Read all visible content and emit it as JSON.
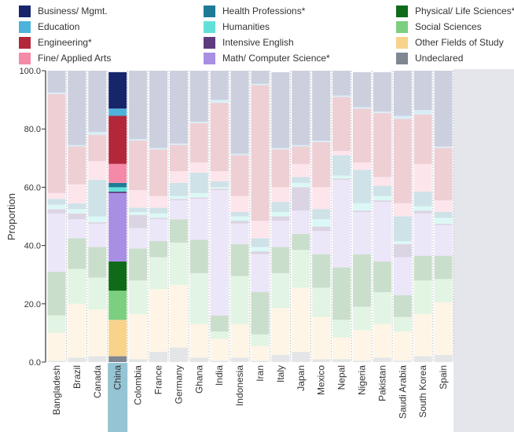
{
  "chart_data": {
    "type": "bar",
    "stacked": true,
    "normalized": true,
    "highlighted_category": "China",
    "categories": [
      "Bangladesh",
      "Brazil",
      "Canada",
      "China",
      "Colombia",
      "France",
      "Germany",
      "Ghana",
      "India",
      "Indonesia",
      "Iran",
      "Italy",
      "Japan",
      "Mexico",
      "Nepal",
      "Nigeria",
      "Pakistan",
      "Saudi Arabia",
      "South Korea",
      "Spain"
    ],
    "ylabel": "Proportion",
    "ylim": [
      0,
      100
    ],
    "yticks": [
      "0.0",
      "20.0",
      "40.0",
      "60.0",
      "80.0",
      "100.0"
    ],
    "legend_position": "top",
    "series": [
      {
        "name": "Undeclared",
        "color": "#7f8791",
        "values": [
          0.5,
          1.5,
          2.0,
          2.0,
          1.0,
          3.5,
          5.0,
          1.5,
          0.5,
          1.5,
          0.5,
          2.5,
          3.5,
          1.0,
          1.0,
          0.5,
          1.5,
          0.5,
          2.0,
          2.5
        ]
      },
      {
        "name": "Other Fields of Study",
        "color": "#f9d28c",
        "values": [
          9.5,
          18.5,
          16.0,
          12.5,
          15.5,
          21.5,
          21.5,
          11.5,
          7.5,
          11.5,
          5.0,
          16.0,
          22.0,
          14.5,
          7.5,
          10.5,
          11.5,
          10.0,
          14.5,
          18.0
        ]
      },
      {
        "name": "Social Sciences",
        "color": "#7ccf7f",
        "values": [
          6.0,
          12.0,
          11.0,
          10.0,
          11.5,
          11.0,
          14.5,
          17.5,
          2.5,
          16.5,
          4.0,
          12.0,
          13.0,
          10.0,
          6.0,
          8.0,
          11.0,
          5.0,
          11.5,
          8.0
        ]
      },
      {
        "name": "Physical/ Life Sciences*",
        "color": "#0f6b18",
        "values": [
          15.0,
          10.5,
          10.5,
          10.0,
          11.0,
          5.5,
          8.0,
          11.5,
          5.5,
          11.0,
          14.5,
          9.0,
          5.5,
          11.5,
          18.0,
          18.0,
          10.5,
          7.5,
          8.5,
          8.0
        ]
      },
      {
        "name": "Math/ Computer Science*",
        "color": "#a88fe3",
        "values": [
          20.0,
          6.5,
          8.0,
          23.5,
          7.0,
          7.5,
          6.5,
          14.0,
          43.0,
          7.0,
          13.0,
          9.0,
          8.0,
          8.0,
          30.0,
          14.5,
          20.5,
          13.0,
          14.5,
          10.5
        ]
      },
      {
        "name": "Intensive English",
        "color": "#5c3b7e",
        "values": [
          1.5,
          2.0,
          0.5,
          0.5,
          4.5,
          0.5,
          0.5,
          0.5,
          0.5,
          1.0,
          1.0,
          1.5,
          8.0,
          1.5,
          0.5,
          0.5,
          0.5,
          4.5,
          1.0,
          0.5
        ]
      },
      {
        "name": "Humanities",
        "color": "#62e0d8",
        "values": [
          1.5,
          1.5,
          2.0,
          1.5,
          1.0,
          1.5,
          1.0,
          1.5,
          0.5,
          1.5,
          1.5,
          1.5,
          1.5,
          2.5,
          1.0,
          2.5,
          1.5,
          1.0,
          1.5,
          2.0
        ]
      },
      {
        "name": "Health Professions*",
        "color": "#1f7b95",
        "values": [
          2.0,
          2.0,
          12.5,
          1.5,
          1.5,
          2.0,
          4.5,
          7.0,
          2.0,
          1.5,
          3.0,
          3.5,
          2.0,
          3.5,
          7.0,
          11.5,
          3.5,
          8.5,
          5.0,
          2.0
        ]
      },
      {
        "name": "Fine/ Applied Arts",
        "color": "#f48aa8",
        "values": [
          2.0,
          6.5,
          6.5,
          6.5,
          6.0,
          4.0,
          4.0,
          3.5,
          3.5,
          5.5,
          6.0,
          5.0,
          4.5,
          7.5,
          1.5,
          2.5,
          3.0,
          4.5,
          9.5,
          4.0
        ]
      },
      {
        "name": "Engineering*",
        "color": "#b3273a",
        "values": [
          34.0,
          13.0,
          9.0,
          16.5,
          17.0,
          16.0,
          9.0,
          13.5,
          23.5,
          14.0,
          46.5,
          13.0,
          6.0,
          15.5,
          18.5,
          18.5,
          22.0,
          29.0,
          17.0,
          18.0
        ]
      },
      {
        "name": "Education",
        "color": "#4eb3da",
        "values": [
          0.5,
          0.5,
          1.0,
          2.5,
          0.5,
          0.5,
          0.5,
          0.5,
          1.0,
          0.5,
          0.5,
          0.5,
          0.5,
          0.5,
          0.5,
          0.5,
          0.5,
          1.0,
          1.5,
          0.5
        ]
      },
      {
        "name": "Business/ Mgmt.",
        "color": "#17256b",
        "values": [
          7.5,
          25.5,
          21.0,
          12.5,
          23.5,
          26.5,
          25.0,
          17.5,
          10.0,
          28.5,
          4.5,
          26.0,
          25.5,
          24.0,
          8.5,
          12.0,
          13.5,
          15.5,
          13.5,
          26.0
        ]
      }
    ]
  }
}
